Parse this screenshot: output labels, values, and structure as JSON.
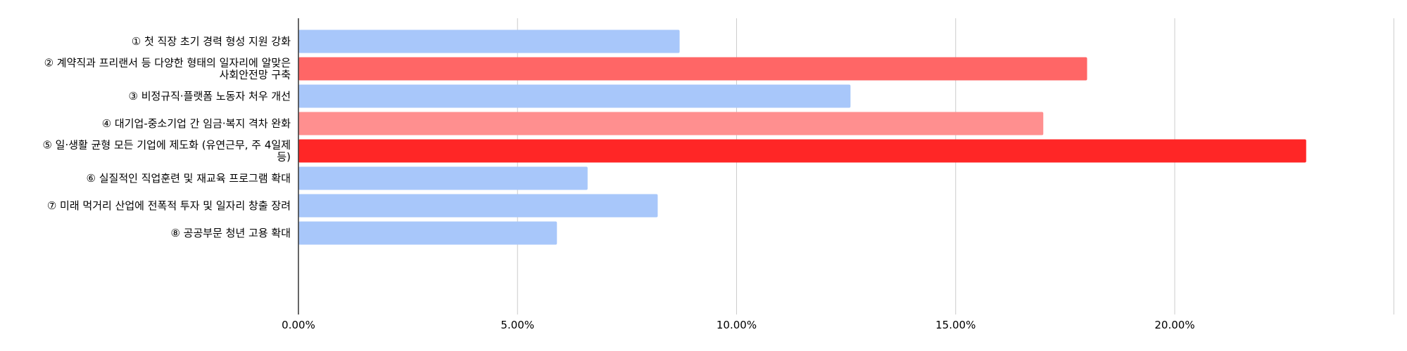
{
  "chart_data": {
    "type": "bar",
    "orientation": "horizontal",
    "categories": [
      [
        "① 첫 직장 초기 경력 형성 지원 강화"
      ],
      [
        "② 계약직과 프리랜서 등 다양한 형태의 일자리에 알맞은",
        "사회안전망 구축"
      ],
      [
        "③ 비정규직·플랫폼 노동자 처우 개선"
      ],
      [
        "④ 대기업-중소기업 간 임금·복지 격차 완화"
      ],
      [
        "⑤ 일·생활 균형 모든 기업에 제도화 (유연근무, 주 4일제",
        "등)"
      ],
      [
        "⑥ 실질적인 직업훈련 및 재교육 프로그램 확대"
      ],
      [
        "⑦ 미래 먹거리 산업에 전폭적 투자 및 일자리 창출 장려"
      ],
      [
        "⑧ 공공부문 청년 고용 확대"
      ]
    ],
    "values": [
      8.7,
      18.0,
      12.6,
      17.0,
      23.0,
      6.6,
      8.2,
      5.9
    ],
    "bar_colors": [
      "#a8c7fa",
      "#ff6666",
      "#a8c7fa",
      "#ff8f8f",
      "#ff2626",
      "#a8c7fa",
      "#a8c7fa",
      "#a8c7fa"
    ],
    "xlim": [
      0,
      25
    ],
    "xticks": [
      0,
      5,
      10,
      15,
      20
    ],
    "xtick_labels": [
      "0.00%",
      "5.00%",
      "10.00%",
      "15.00%",
      "20.00%"
    ],
    "grid": "vertical",
    "gridline_color": "#cccccc",
    "axis_color": "#333333",
    "title": "",
    "xlabel": "",
    "ylabel": ""
  }
}
